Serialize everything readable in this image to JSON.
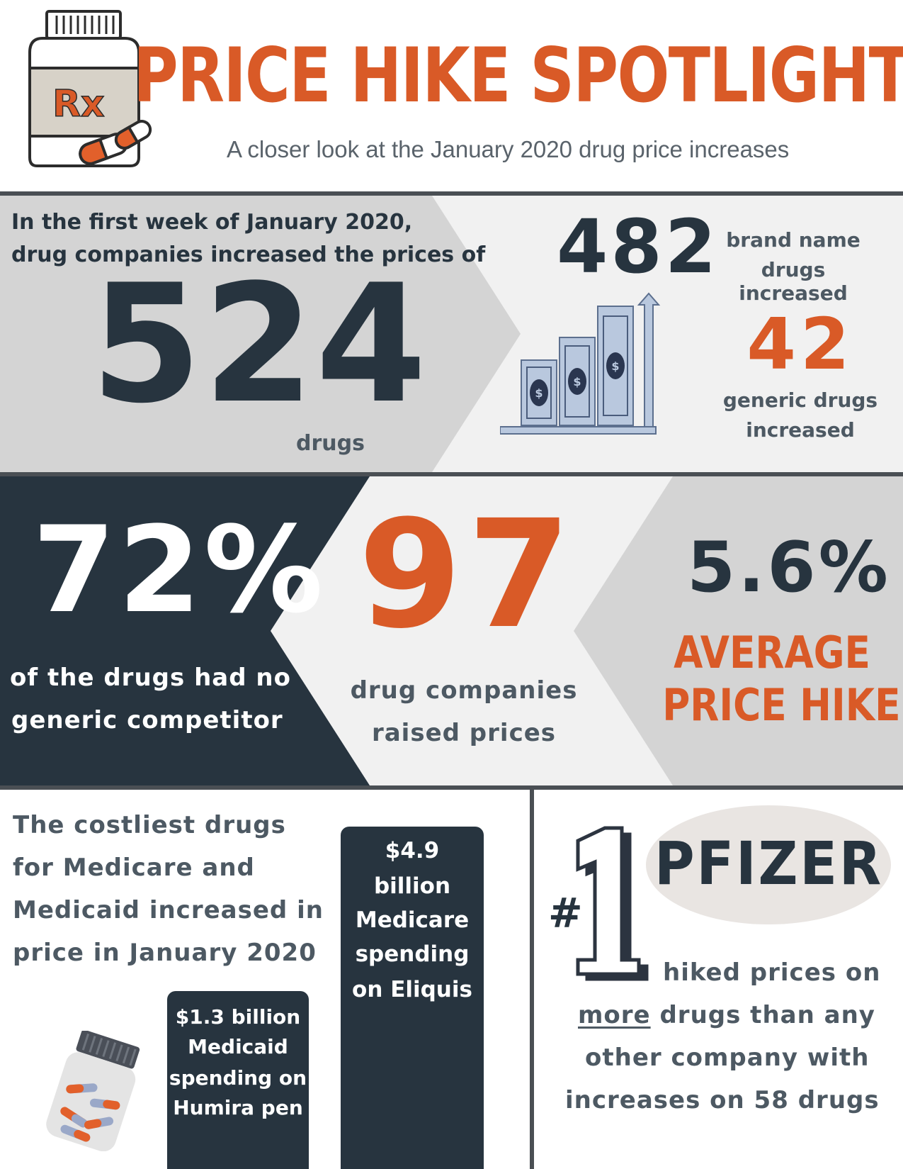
{
  "header": {
    "title": "PRICE HIKE SPOTLIGHT",
    "subtitle": "A closer look at the January 2020 drug price increases",
    "logo_text": "Rx",
    "icon": "prescription-bottle-icon"
  },
  "section1": {
    "intro_line1": "In the first week of January 2020,",
    "intro_line2": "drug companies increased the prices of",
    "total_number": "524",
    "total_unit": "drugs",
    "brand_number": "482",
    "brand_label_line1": "brand name",
    "brand_label_line2": "drugs increased",
    "generic_number": "42",
    "generic_label_line1": "generic drugs",
    "generic_label_line2": "increased",
    "icon": "rising-money-chart-icon"
  },
  "section2": {
    "pct_number": "72%",
    "pct_line1": "of the drugs had no",
    "pct_line2": "generic competitor",
    "companies_number": "97",
    "companies_line1": "drug companies",
    "companies_line2": "raised prices",
    "avg_number": "5.6%",
    "avg_line1": "AVERAGE",
    "avg_line2": "PRICE HIKE"
  },
  "section3": {
    "costliest_lines": [
      "The costliest drugs",
      "for Medicare and",
      "Medicaid increased in",
      "price in January 2020"
    ],
    "eliquis_lines": [
      "$4.9",
      "billion",
      "Medicare",
      "spending",
      "on Eliquis"
    ],
    "humira_lines": [
      "$1.3 billion",
      "Medicaid",
      "spending on",
      "Humira pen"
    ],
    "rank_prefix": "#",
    "rank_number": "1",
    "company": "PFIZER",
    "pfizer_line1": "hiked prices on",
    "pfizer_more": "more",
    "pfizer_line2_rest": " drugs than any",
    "pfizer_line3": "other company with",
    "pfizer_line4": "increases on 58 drugs",
    "icon": "pill-bottle-icon"
  },
  "colors": {
    "orange": "#d95a27",
    "navy": "#27343f",
    "light_gray": "#f0f0f0",
    "mid_gray": "#d4d4d4"
  }
}
